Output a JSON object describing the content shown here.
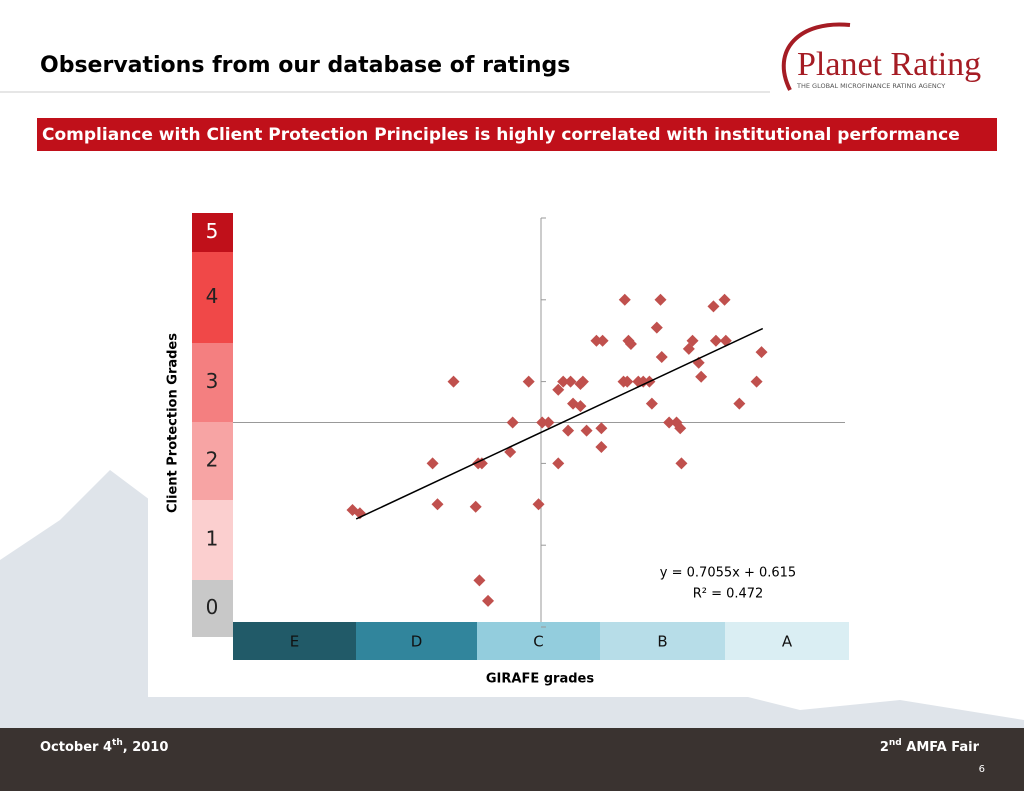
{
  "header": {
    "title": "Observations from our database of ratings",
    "logo": "Planet Rating",
    "logo_tagline": "THE GLOBAL MICROFINANCE RATING AGENCY",
    "banner": "Compliance with Client Protection Principles is highly correlated with institutional performance"
  },
  "footer": {
    "date": [
      "October 4",
      "th",
      ", 2010"
    ],
    "event": [
      "2",
      "nd",
      " AMFA Fair"
    ],
    "page": "6"
  },
  "chart_data": {
    "type": "scatter",
    "color": "#c0504d",
    "xlabel": "GIRAFE grades",
    "ylabel": "Client Protection Grades",
    "xlim": [
      0,
      5
    ],
    "ylim": [
      0,
      5
    ],
    "yticks": [
      0,
      1,
      2,
      3,
      4,
      5
    ],
    "x_bands": [
      {
        "label": "E",
        "color": "#215a68"
      },
      {
        "label": "D",
        "color": "#31859c"
      },
      {
        "label": "C",
        "color": "#93cddd"
      },
      {
        "label": "B",
        "color": "#b7dde8"
      },
      {
        "label": "A",
        "color": "#daeef3"
      }
    ],
    "y_bands": [
      {
        "label": "5",
        "color": "#c0101a"
      },
      {
        "label": "4",
        "color": "#f04848"
      },
      {
        "label": "3",
        "color": "#f47f80"
      },
      {
        "label": "2",
        "color": "#f7a4a4"
      },
      {
        "label": "1",
        "color": "#fbcfcf"
      },
      {
        "label": "0",
        "color": "#c8c8c8"
      }
    ],
    "x": [
      0.97,
      1.03,
      1.66,
      1.97,
      2.48,
      1.62,
      1.99,
      2.02,
      2.25,
      2.64,
      1.79,
      2.4,
      2.27,
      2.51,
      2.56,
      2.72,
      2.87,
      2.99,
      2.99,
      2.64,
      2.68,
      2.74,
      2.82,
      2.84,
      2.76,
      2.82,
      2.95,
      3.0,
      3.18,
      3.21,
      3.23,
      3.17,
      3.2,
      3.29,
      3.33,
      3.38,
      3.4,
      3.44,
      3.47,
      3.48,
      3.54,
      3.6,
      3.63,
      3.64,
      3.7,
      3.73,
      3.78,
      3.8,
      3.9,
      3.99,
      3.92,
      4.0,
      4.11,
      4.25,
      4.29,
      2.0,
      2.07
    ],
    "values": [
      1.43,
      1.39,
      1.5,
      1.47,
      1.5,
      2.0,
      2.0,
      2.0,
      2.14,
      2.0,
      3.0,
      3.0,
      2.5,
      2.5,
      2.5,
      2.4,
      2.4,
      2.43,
      2.2,
      2.9,
      3.0,
      3.0,
      2.97,
      3.0,
      2.73,
      2.7,
      3.5,
      3.5,
      4.0,
      3.5,
      3.46,
      3.0,
      3.0,
      3.0,
      3.0,
      3.0,
      2.73,
      3.66,
      4.0,
      3.3,
      2.5,
      2.5,
      2.43,
      2.0,
      3.4,
      3.5,
      3.23,
      3.06,
      3.92,
      4.0,
      3.5,
      3.5,
      2.73,
      3.0,
      3.36,
      0.57,
      0.32
    ],
    "trendline": {
      "slope": 0.7055,
      "intercept": 0.615,
      "x": [
        1,
        4.3
      ],
      "equation": "y = 0.7055x + 0.615",
      "r2": "R² = 0.472"
    }
  }
}
